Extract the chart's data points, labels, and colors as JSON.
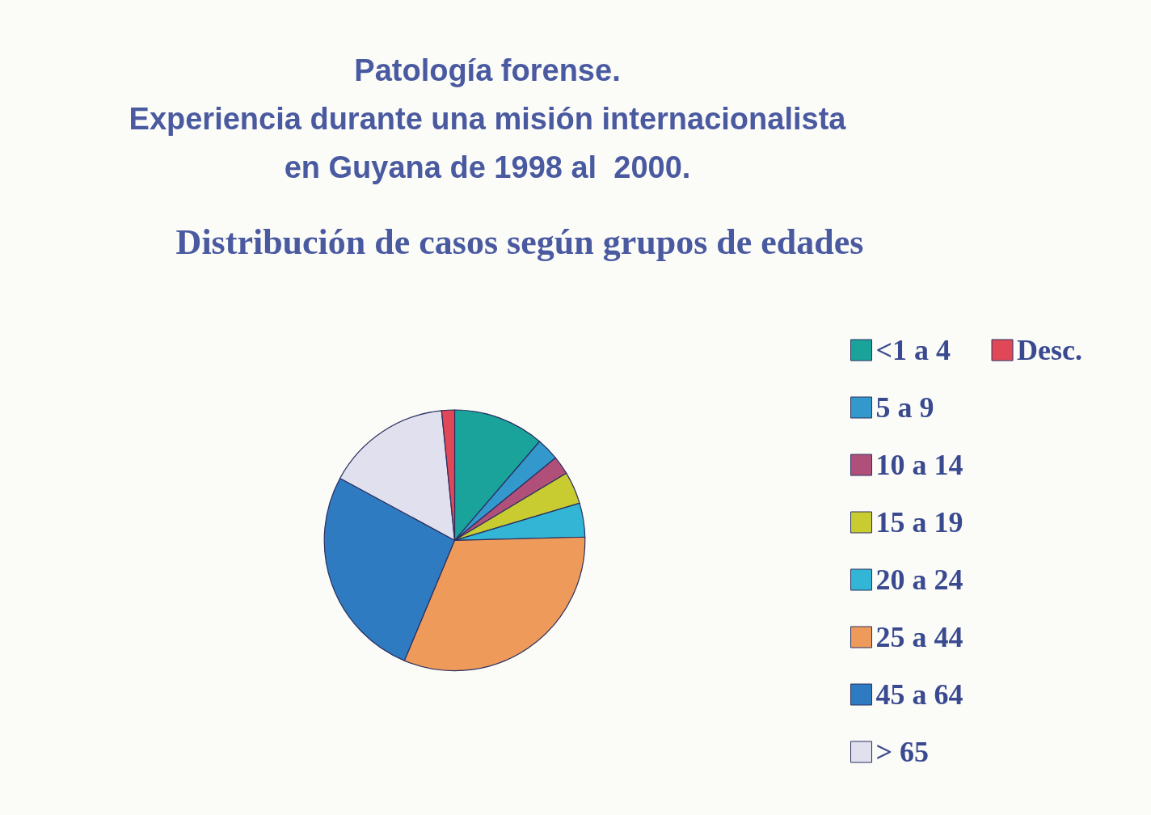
{
  "chart_data": {
    "type": "pie",
    "title": "Patología forense.\nExperiencia durante una misión internacionalista\nen Guyana de 1998 al  2000.",
    "subtitle": "Distribución de casos según grupos de edades",
    "categories": [
      "<1 a 4",
      "5 a 9",
      "10 a 14",
      "15 a 19",
      "20 a 24",
      "25 a 44",
      "45 a 64",
      "> 65",
      "Desc."
    ],
    "values": [
      11.3,
      2.8,
      2.3,
      4.0,
      4.2,
      31.7,
      26.6,
      15.5,
      1.6
    ],
    "colors": [
      "#1aa39a",
      "#3399cc",
      "#b0507a",
      "#c8cc30",
      "#33b5d5",
      "#ee9a5a",
      "#2f7bc2",
      "#e0e0ee",
      "#e04858"
    ],
    "legend": "right"
  }
}
